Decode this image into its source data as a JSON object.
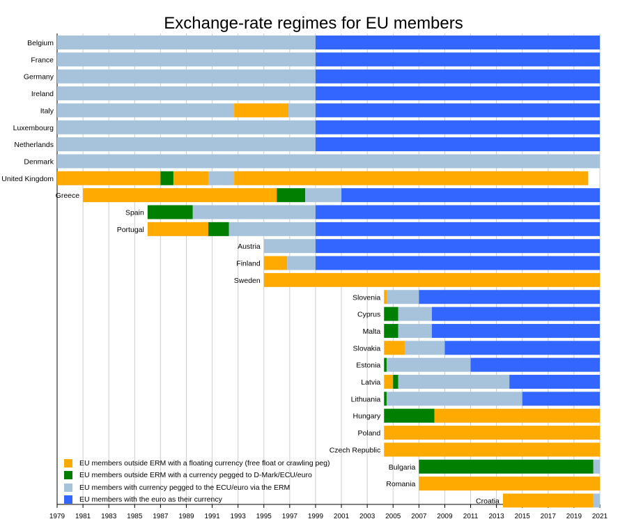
{
  "colors": {
    "float": "#FFAA00",
    "peg": "#007F00",
    "erm": "#A6C3DB",
    "euro": "#3366FF",
    "grid": "#CCCCCC",
    "axis": "#000000"
  },
  "chart_data": {
    "type": "timeline-bar",
    "title": "Exchange-rate regimes for EU members",
    "xlim": [
      1979,
      2021
    ],
    "x_ticks": [
      "1979",
      "1981",
      "1983",
      "1985",
      "1987",
      "1989",
      "1991",
      "1993",
      "1995",
      "1997",
      "1999",
      "2001",
      "2003",
      "2005",
      "2007",
      "2009",
      "2011",
      "2013",
      "2015",
      "2017",
      "2019",
      "2021"
    ],
    "grid": true,
    "legend_position": "bottom-left",
    "legend": [
      {
        "key": "float",
        "label": "EU members outside ERM with a floating currency (free float or crawling peg)"
      },
      {
        "key": "peg",
        "label": "EU members outside ERM with a currency pegged to D-Mark/ECU/euro"
      },
      {
        "key": "erm",
        "label": "EU members with currency pegged to the ECU/euro via the ERM"
      },
      {
        "key": "euro",
        "label": "EU members with the euro as their currency"
      }
    ],
    "countries": [
      {
        "name": "Belgium",
        "segments": [
          {
            "type": "erm",
            "start": 1979,
            "end": 1999
          },
          {
            "type": "euro",
            "start": 1999,
            "end": 2021
          }
        ]
      },
      {
        "name": "France",
        "segments": [
          {
            "type": "erm",
            "start": 1979,
            "end": 1999
          },
          {
            "type": "euro",
            "start": 1999,
            "end": 2021
          }
        ]
      },
      {
        "name": "Germany",
        "segments": [
          {
            "type": "erm",
            "start": 1979,
            "end": 1999
          },
          {
            "type": "euro",
            "start": 1999,
            "end": 2021
          }
        ]
      },
      {
        "name": "Ireland",
        "segments": [
          {
            "type": "erm",
            "start": 1979,
            "end": 1999
          },
          {
            "type": "euro",
            "start": 1999,
            "end": 2021
          }
        ]
      },
      {
        "name": "Italy",
        "segments": [
          {
            "type": "erm",
            "start": 1979,
            "end": 1992.7
          },
          {
            "type": "float",
            "start": 1992.7,
            "end": 1996.9
          },
          {
            "type": "erm",
            "start": 1996.9,
            "end": 1999
          },
          {
            "type": "euro",
            "start": 1999,
            "end": 2021
          }
        ]
      },
      {
        "name": "Luxembourg",
        "segments": [
          {
            "type": "erm",
            "start": 1979,
            "end": 1999
          },
          {
            "type": "euro",
            "start": 1999,
            "end": 2021
          }
        ]
      },
      {
        "name": "Netherlands",
        "segments": [
          {
            "type": "erm",
            "start": 1979,
            "end": 1999
          },
          {
            "type": "euro",
            "start": 1999,
            "end": 2021
          }
        ]
      },
      {
        "name": "Denmark",
        "segments": [
          {
            "type": "erm",
            "start": 1979,
            "end": 2021
          }
        ]
      },
      {
        "name": "United Kingdom",
        "segments": [
          {
            "type": "float",
            "start": 1979,
            "end": 1987
          },
          {
            "type": "peg",
            "start": 1987,
            "end": 1988
          },
          {
            "type": "float",
            "start": 1988,
            "end": 1990.7
          },
          {
            "type": "erm",
            "start": 1990.7,
            "end": 1992.7
          },
          {
            "type": "float",
            "start": 1992.7,
            "end": 2020.1
          }
        ]
      },
      {
        "name": "Greece",
        "segments": [
          {
            "type": "float",
            "start": 1981,
            "end": 1996
          },
          {
            "type": "peg",
            "start": 1996,
            "end": 1998.2
          },
          {
            "type": "erm",
            "start": 1998.2,
            "end": 2001
          },
          {
            "type": "euro",
            "start": 2001,
            "end": 2021
          }
        ]
      },
      {
        "name": "Spain",
        "segments": [
          {
            "type": "peg",
            "start": 1986,
            "end": 1989.5
          },
          {
            "type": "erm",
            "start": 1989.5,
            "end": 1999
          },
          {
            "type": "euro",
            "start": 1999,
            "end": 2021
          }
        ]
      },
      {
        "name": "Portugal",
        "segments": [
          {
            "type": "float",
            "start": 1986,
            "end": 1990.7
          },
          {
            "type": "peg",
            "start": 1990.7,
            "end": 1992.3
          },
          {
            "type": "erm",
            "start": 1992.3,
            "end": 1999
          },
          {
            "type": "euro",
            "start": 1999,
            "end": 2021
          }
        ]
      },
      {
        "name": "Austria",
        "segments": [
          {
            "type": "erm",
            "start": 1995,
            "end": 1999
          },
          {
            "type": "euro",
            "start": 1999,
            "end": 2021
          }
        ]
      },
      {
        "name": "Finland",
        "segments": [
          {
            "type": "float",
            "start": 1995,
            "end": 1996.8
          },
          {
            "type": "erm",
            "start": 1996.8,
            "end": 1999
          },
          {
            "type": "euro",
            "start": 1999,
            "end": 2021
          }
        ]
      },
      {
        "name": "Sweden",
        "segments": [
          {
            "type": "float",
            "start": 1995,
            "end": 2021
          }
        ]
      },
      {
        "name": "Slovenia",
        "segments": [
          {
            "type": "float",
            "start": 2004.3,
            "end": 2004.5
          },
          {
            "type": "erm",
            "start": 2004.5,
            "end": 2007
          },
          {
            "type": "euro",
            "start": 2007,
            "end": 2021
          }
        ]
      },
      {
        "name": "Cyprus",
        "segments": [
          {
            "type": "peg",
            "start": 2004.3,
            "end": 2005.4
          },
          {
            "type": "erm",
            "start": 2005.4,
            "end": 2008
          },
          {
            "type": "euro",
            "start": 2008,
            "end": 2021
          }
        ]
      },
      {
        "name": "Malta",
        "segments": [
          {
            "type": "peg",
            "start": 2004.3,
            "end": 2005.4
          },
          {
            "type": "erm",
            "start": 2005.4,
            "end": 2008
          },
          {
            "type": "euro",
            "start": 2008,
            "end": 2021
          }
        ]
      },
      {
        "name": "Slovakia",
        "segments": [
          {
            "type": "float",
            "start": 2004.3,
            "end": 2005.9
          },
          {
            "type": "erm",
            "start": 2005.9,
            "end": 2009
          },
          {
            "type": "euro",
            "start": 2009,
            "end": 2021
          }
        ]
      },
      {
        "name": "Estonia",
        "segments": [
          {
            "type": "peg",
            "start": 2004.3,
            "end": 2004.5
          },
          {
            "type": "erm",
            "start": 2004.5,
            "end": 2011
          },
          {
            "type": "euro",
            "start": 2011,
            "end": 2021
          }
        ]
      },
      {
        "name": "Latvia",
        "segments": [
          {
            "type": "float",
            "start": 2004.3,
            "end": 2005
          },
          {
            "type": "peg",
            "start": 2005,
            "end": 2005.4
          },
          {
            "type": "erm",
            "start": 2005.4,
            "end": 2014
          },
          {
            "type": "euro",
            "start": 2014,
            "end": 2021
          }
        ]
      },
      {
        "name": "Lithuania",
        "segments": [
          {
            "type": "peg",
            "start": 2004.3,
            "end": 2004.5
          },
          {
            "type": "erm",
            "start": 2004.5,
            "end": 2015
          },
          {
            "type": "euro",
            "start": 2015,
            "end": 2021
          }
        ]
      },
      {
        "name": "Hungary",
        "segments": [
          {
            "type": "peg",
            "start": 2004.3,
            "end": 2008.2
          },
          {
            "type": "float",
            "start": 2008.2,
            "end": 2021
          }
        ]
      },
      {
        "name": "Poland",
        "segments": [
          {
            "type": "float",
            "start": 2004.3,
            "end": 2021
          }
        ]
      },
      {
        "name": "Czech Republic",
        "segments": [
          {
            "type": "float",
            "start": 2004.3,
            "end": 2021
          }
        ]
      },
      {
        "name": "Bulgaria",
        "segments": [
          {
            "type": "peg",
            "start": 2007,
            "end": 2020.5
          },
          {
            "type": "erm",
            "start": 2020.5,
            "end": 2021
          }
        ]
      },
      {
        "name": "Romania",
        "segments": [
          {
            "type": "float",
            "start": 2007,
            "end": 2021
          }
        ]
      },
      {
        "name": "Croatia",
        "segments": [
          {
            "type": "float",
            "start": 2013.5,
            "end": 2020.5
          },
          {
            "type": "erm",
            "start": 2020.5,
            "end": 2021
          }
        ]
      }
    ]
  }
}
